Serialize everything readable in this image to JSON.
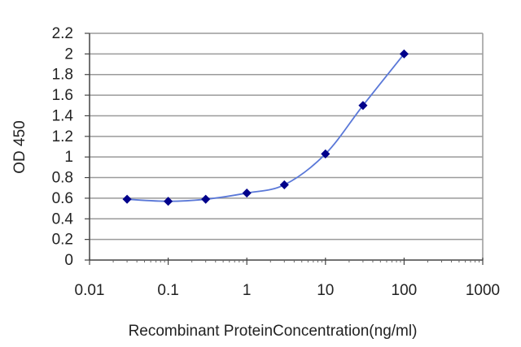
{
  "chart_data": {
    "type": "line",
    "title": "",
    "xlabel": "Recombinant ProteinConcentration(ng/ml)",
    "ylabel": "OD 450",
    "x_scale": "log",
    "xlim": [
      0.01,
      1000
    ],
    "ylim": [
      0,
      2.2
    ],
    "x_ticks": [
      0.01,
      0.1,
      1,
      10,
      100,
      1000
    ],
    "x_tick_labels": [
      "0.01",
      "0.1",
      "1",
      "10",
      "100",
      "1000"
    ],
    "y_ticks": [
      0,
      0.2,
      0.4,
      0.6,
      0.8,
      1,
      1.2,
      1.4,
      1.6,
      1.8,
      2,
      2.2
    ],
    "y_tick_labels": [
      "0",
      "0.2",
      "0.4",
      "0.6",
      "0.8",
      "1",
      "1.2",
      "1.4",
      "1.6",
      "1.8",
      "2",
      "2.2"
    ],
    "grid": "horizontal",
    "legend": "none",
    "series": [
      {
        "x": [
          0.03,
          0.1,
          0.3,
          1,
          3,
          10,
          30,
          100
        ],
        "y": [
          0.59,
          0.57,
          0.59,
          0.65,
          0.73,
          1.03,
          1.5,
          2.0
        ],
        "color": "#00008b",
        "line_color": "#5a78d8"
      }
    ]
  }
}
